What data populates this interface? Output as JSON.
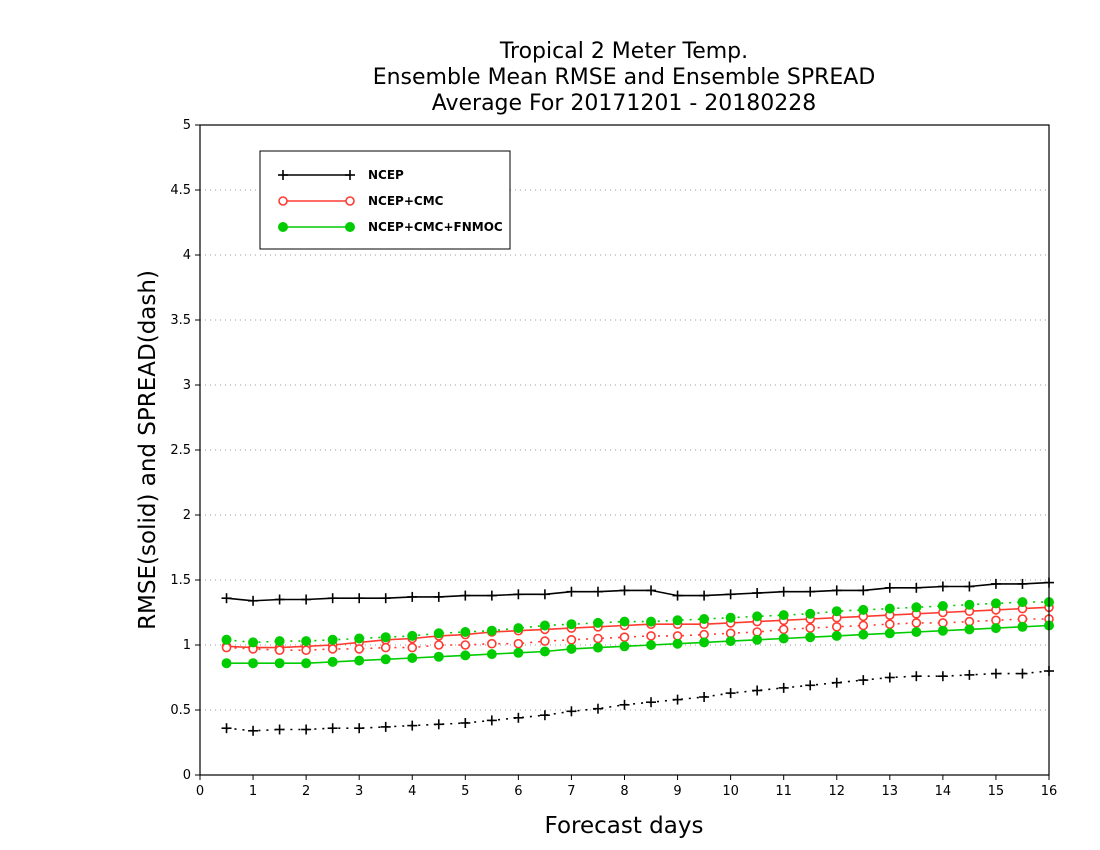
{
  "chart_data": {
    "type": "line",
    "title_lines": [
      "Tropical 2 Meter Temp.",
      "Ensemble Mean RMSE and Ensemble SPREAD",
      "Average For 20171201 - 20180228"
    ],
    "xlabel": "Forecast days",
    "ylabel": "RMSE(solid) and SPREAD(dash)",
    "xlim": [
      0,
      16
    ],
    "ylim": [
      0,
      5
    ],
    "x_ticks": [
      "0",
      "1",
      "2",
      "3",
      "4",
      "5",
      "6",
      "7",
      "8",
      "9",
      "10",
      "11",
      "12",
      "13",
      "14",
      "15",
      "16"
    ],
    "y_ticks": [
      "0",
      "0.5",
      "1",
      "1.5",
      "2",
      "2.5",
      "3",
      "3.5",
      "4",
      "4.5",
      "5"
    ],
    "grid": "horizontal dotted",
    "legend_position": "top-left",
    "x": [
      0.5,
      1,
      1.5,
      2,
      2.5,
      3,
      3.5,
      4,
      4.5,
      5,
      5.5,
      6,
      6.5,
      7,
      7.5,
      8,
      8.5,
      9,
      9.5,
      10,
      10.5,
      11,
      11.5,
      12,
      12.5,
      13,
      13.5,
      14,
      14.5,
      15,
      15.5,
      16
    ],
    "series": [
      {
        "name": "NCEP",
        "color": "#000000",
        "marker": "plus",
        "rmse": [
          1.36,
          1.34,
          1.35,
          1.35,
          1.36,
          1.36,
          1.36,
          1.37,
          1.37,
          1.38,
          1.38,
          1.39,
          1.39,
          1.41,
          1.41,
          1.42,
          1.42,
          1.38,
          1.38,
          1.39,
          1.4,
          1.41,
          1.41,
          1.42,
          1.42,
          1.44,
          1.44,
          1.45,
          1.45,
          1.47,
          1.47,
          1.48
        ],
        "spread": [
          0.36,
          0.34,
          0.35,
          0.35,
          0.36,
          0.36,
          0.37,
          0.38,
          0.39,
          0.4,
          0.42,
          0.44,
          0.46,
          0.49,
          0.51,
          0.54,
          0.56,
          0.58,
          0.6,
          0.63,
          0.65,
          0.67,
          0.69,
          0.71,
          0.73,
          0.75,
          0.76,
          0.76,
          0.77,
          0.78,
          0.78,
          0.8
        ]
      },
      {
        "name": "NCEP+CMC",
        "color": "#ff3b30",
        "marker": "open-circle",
        "rmse": [
          0.99,
          0.98,
          0.98,
          0.99,
          1.0,
          1.02,
          1.04,
          1.05,
          1.07,
          1.08,
          1.1,
          1.11,
          1.12,
          1.13,
          1.14,
          1.15,
          1.16,
          1.16,
          1.16,
          1.17,
          1.18,
          1.19,
          1.2,
          1.21,
          1.22,
          1.23,
          1.24,
          1.25,
          1.26,
          1.27,
          1.28,
          1.29
        ],
        "spread": [
          0.98,
          0.97,
          0.96,
          0.96,
          0.97,
          0.97,
          0.98,
          0.98,
          1.0,
          1.0,
          1.01,
          1.01,
          1.03,
          1.04,
          1.05,
          1.06,
          1.07,
          1.07,
          1.08,
          1.09,
          1.1,
          1.12,
          1.13,
          1.14,
          1.15,
          1.16,
          1.17,
          1.17,
          1.18,
          1.19,
          1.2,
          1.2
        ]
      },
      {
        "name": "NCEP+CMC+FNMOC",
        "color": "#00cc00",
        "marker": "filled-circle",
        "rmse": [
          0.86,
          0.86,
          0.86,
          0.86,
          0.87,
          0.88,
          0.89,
          0.9,
          0.91,
          0.92,
          0.93,
          0.94,
          0.95,
          0.97,
          0.98,
          0.99,
          1.0,
          1.01,
          1.02,
          1.03,
          1.04,
          1.05,
          1.06,
          1.07,
          1.08,
          1.09,
          1.1,
          1.11,
          1.12,
          1.13,
          1.14,
          1.15
        ],
        "spread": [
          1.04,
          1.02,
          1.03,
          1.03,
          1.04,
          1.05,
          1.06,
          1.07,
          1.09,
          1.1,
          1.11,
          1.13,
          1.15,
          1.16,
          1.17,
          1.18,
          1.18,
          1.19,
          1.2,
          1.21,
          1.22,
          1.23,
          1.24,
          1.26,
          1.27,
          1.28,
          1.29,
          1.3,
          1.31,
          1.32,
          1.33,
          1.33
        ]
      }
    ]
  }
}
